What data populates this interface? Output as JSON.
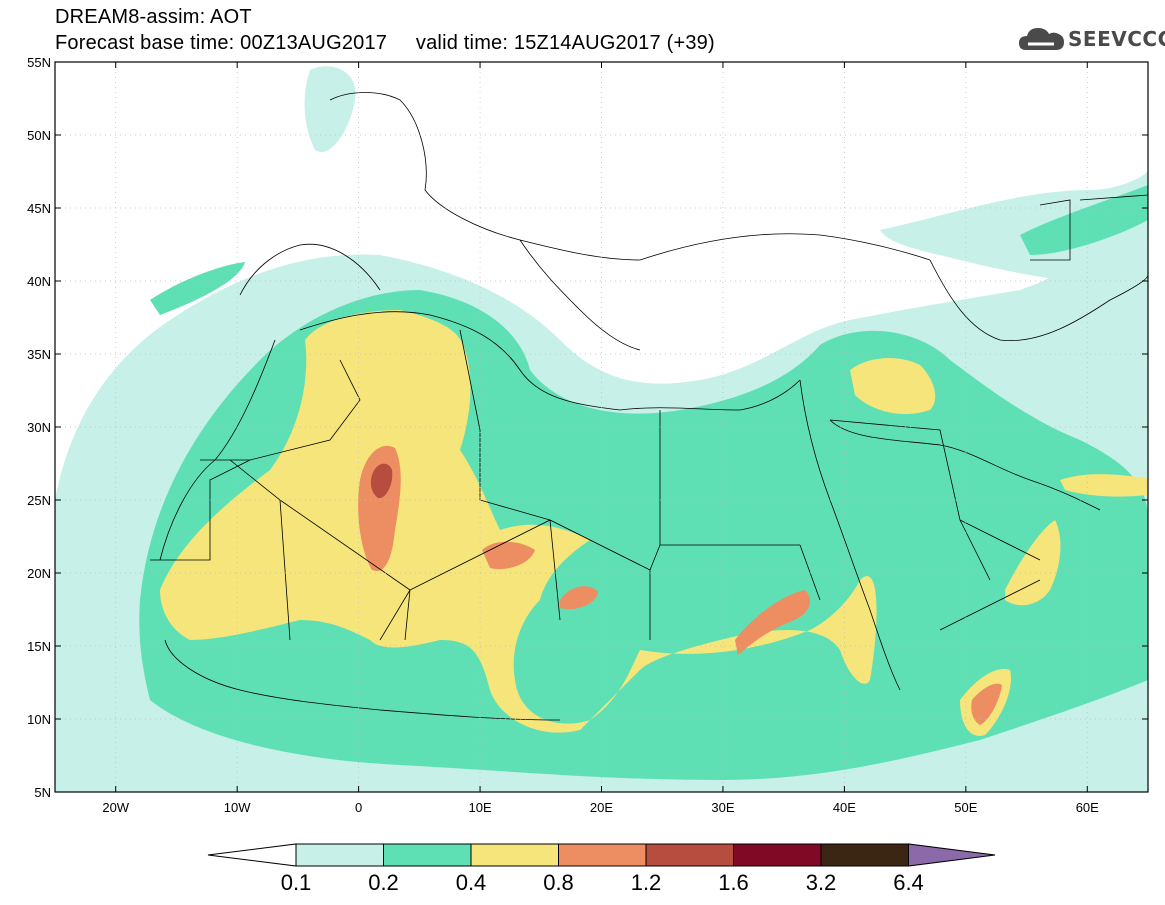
{
  "header": {
    "title_line1": "DREAM8-assim: AOT",
    "title_line2": "Forecast base time: 00Z13AUG2017     valid time: 15Z14AUG2017 (+39)"
  },
  "logo": {
    "text": "SEEVCCC",
    "icon": "cloud-icon",
    "color": "#4a4a4a"
  },
  "map": {
    "lon_range": [
      -25,
      65
    ],
    "lat_range": [
      5,
      55
    ],
    "lon_ticks": [
      {
        "value": -20,
        "label": "20W"
      },
      {
        "value": -10,
        "label": "10W"
      },
      {
        "value": 0,
        "label": "0"
      },
      {
        "value": 10,
        "label": "10E"
      },
      {
        "value": 20,
        "label": "20E"
      },
      {
        "value": 30,
        "label": "30E"
      },
      {
        "value": 40,
        "label": "40E"
      },
      {
        "value": 50,
        "label": "50E"
      },
      {
        "value": 60,
        "label": "60E"
      }
    ],
    "lat_ticks": [
      {
        "value": 55,
        "label": "55N"
      },
      {
        "value": 50,
        "label": "50N"
      },
      {
        "value": 45,
        "label": "45N"
      },
      {
        "value": 40,
        "label": "40N"
      },
      {
        "value": 35,
        "label": "35N"
      },
      {
        "value": 30,
        "label": "30N"
      },
      {
        "value": 25,
        "label": "25N"
      },
      {
        "value": 20,
        "label": "20N"
      },
      {
        "value": 15,
        "label": "15N"
      },
      {
        "value": 10,
        "label": "10N"
      },
      {
        "value": 5,
        "label": "5N"
      }
    ],
    "grid": true
  },
  "colorbar": {
    "labels": [
      "0.1",
      "0.2",
      "0.4",
      "0.8",
      "1.2",
      "1.6",
      "3.2",
      "6.4"
    ],
    "colors": [
      "#ffffff",
      "#c6f0e8",
      "#5ee0b4",
      "#f5e57a",
      "#ec8e62",
      "#b74d3e",
      "#800a26",
      "#3b2513",
      "#8c6aaa"
    ]
  }
}
